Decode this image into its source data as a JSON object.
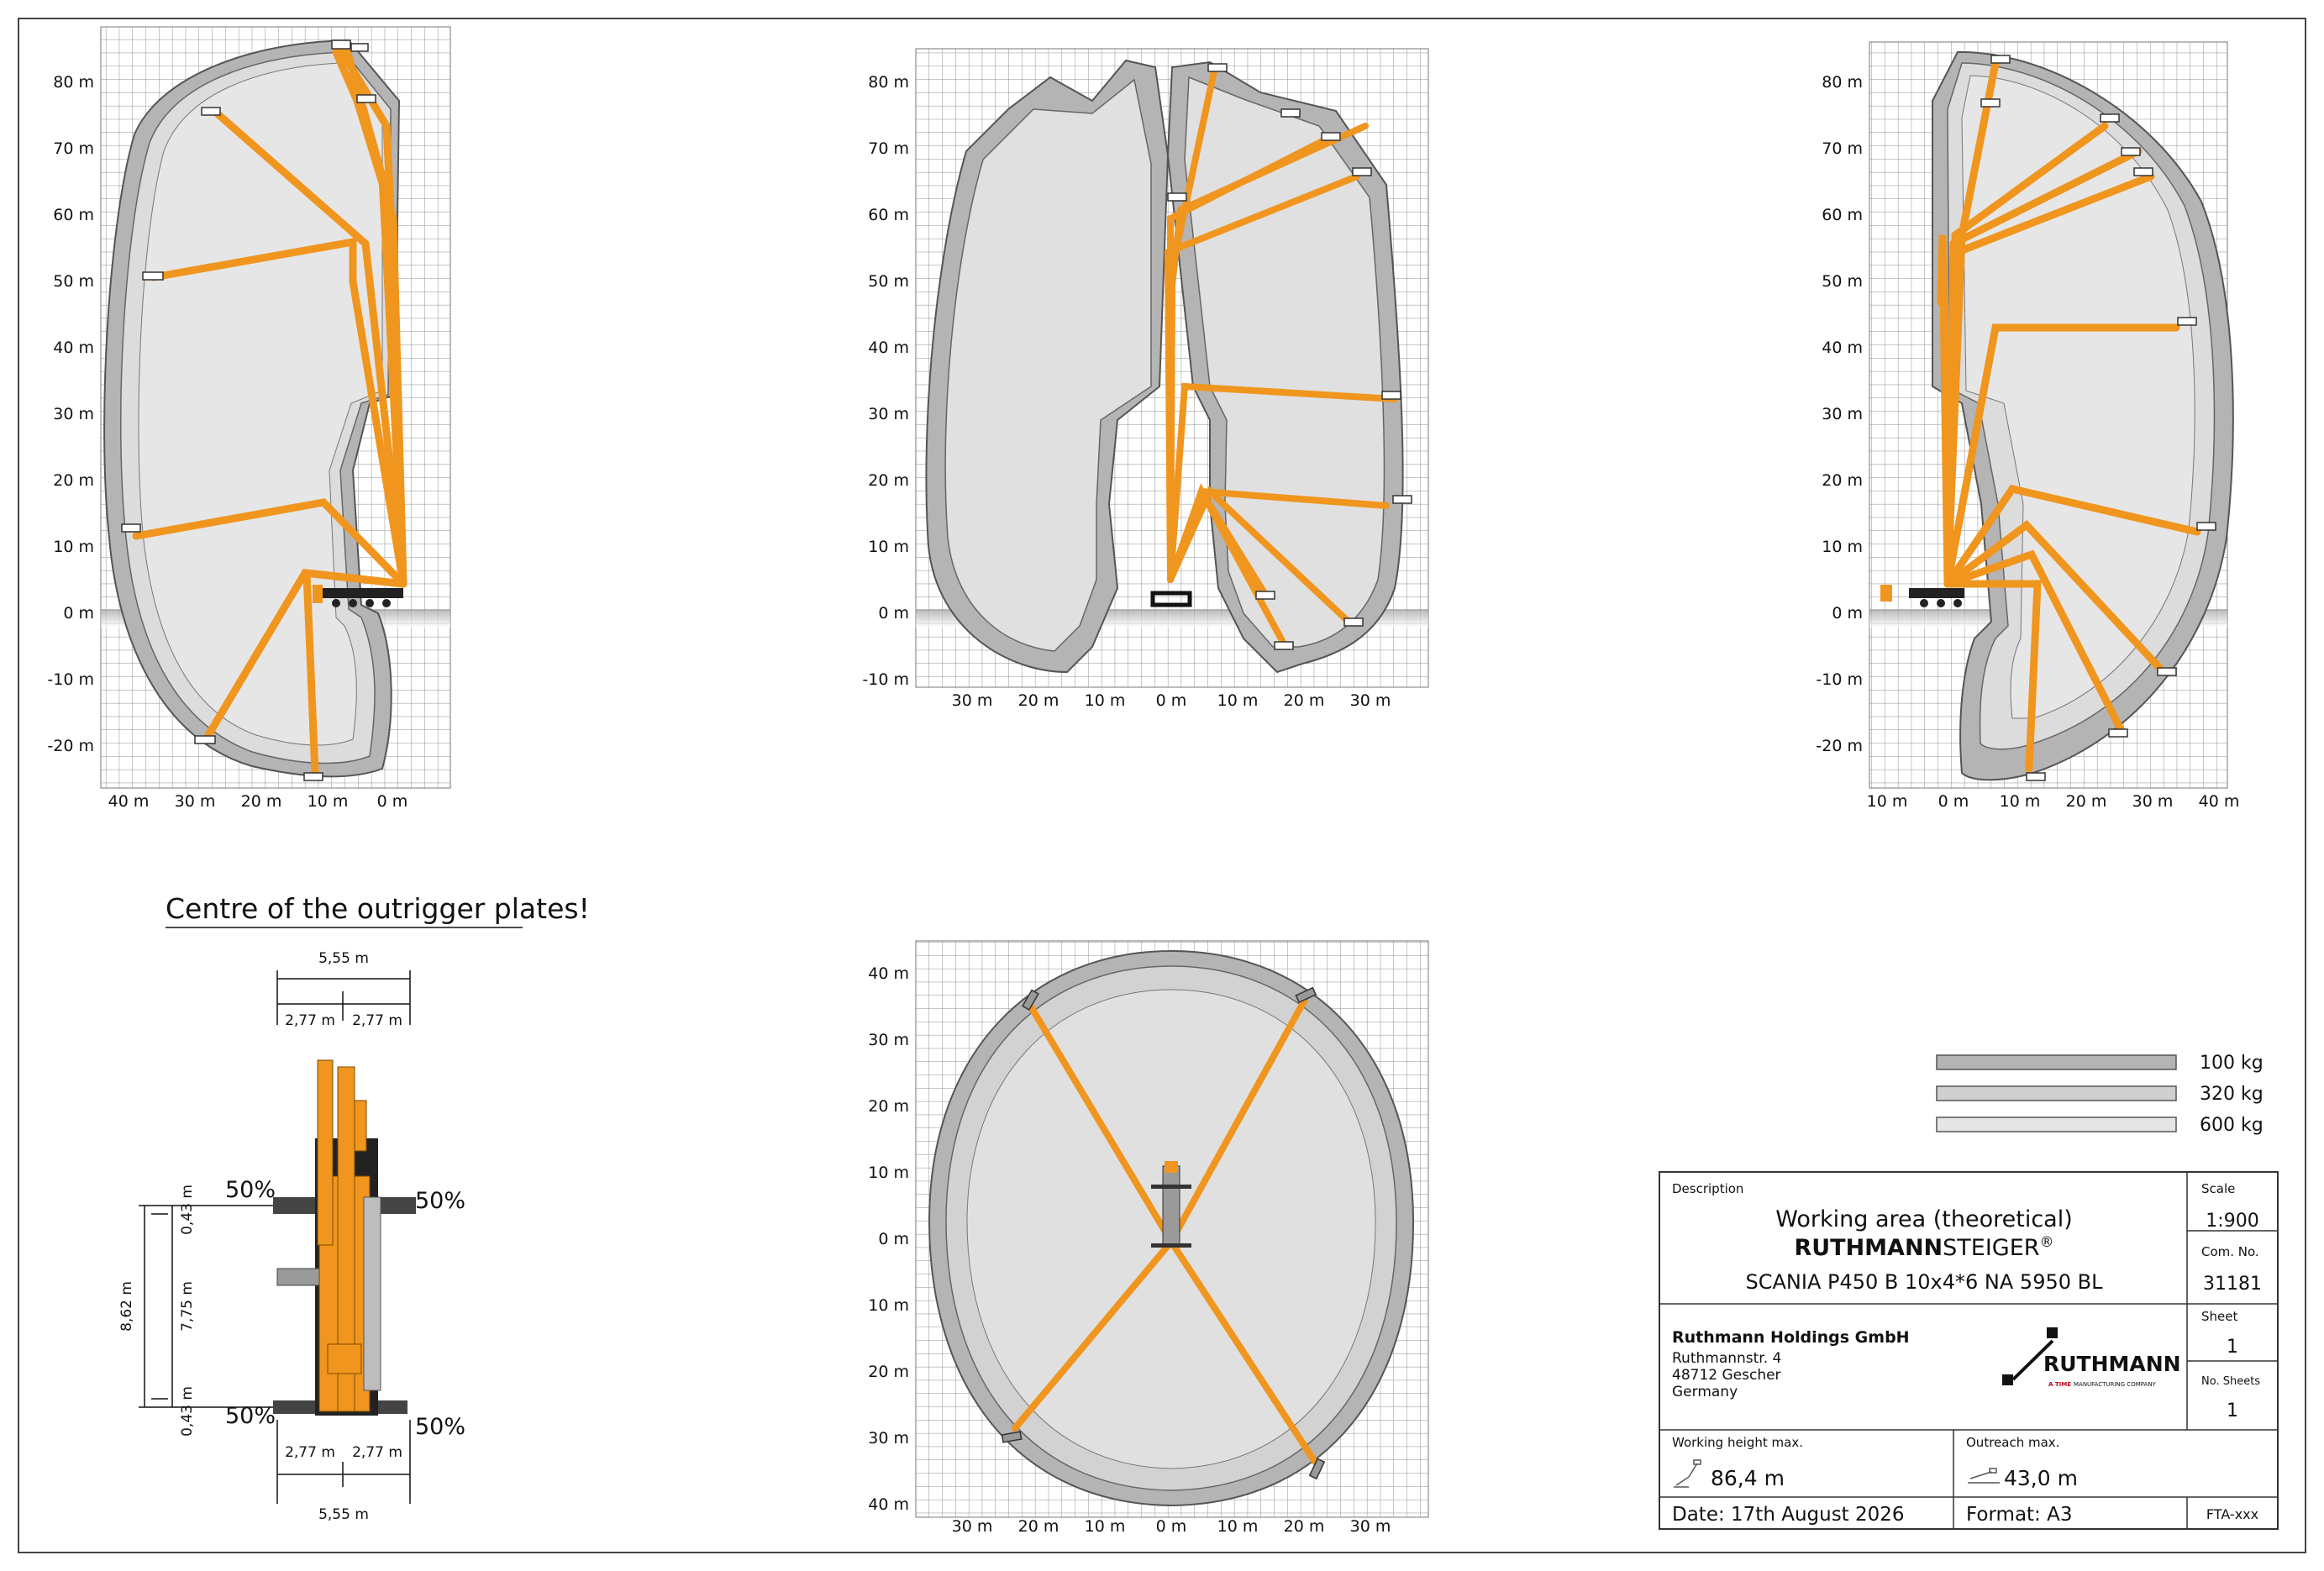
{
  "panels": {
    "side_left": {
      "x_ticks": [
        "40 m",
        "30 m",
        "20 m",
        "10 m",
        "0 m"
      ],
      "y_ticks": [
        "80 m",
        "70 m",
        "60 m",
        "50 m",
        "40 m",
        "30 m",
        "20 m",
        "10 m",
        "0 m",
        "-10 m",
        "-20 m"
      ]
    },
    "side_center": {
      "x_ticks": [
        "30 m",
        "20 m",
        "10 m",
        "0 m",
        "10 m",
        "20 m",
        "30 m"
      ],
      "y_ticks": [
        "80 m",
        "70 m",
        "60 m",
        "50 m",
        "40 m",
        "30 m",
        "20 m",
        "10 m",
        "0 m",
        "-10 m"
      ]
    },
    "side_right": {
      "x_ticks": [
        "10 m",
        "0 m",
        "10 m",
        "20 m",
        "30 m",
        "40 m"
      ],
      "y_ticks": [
        "80 m",
        "70 m",
        "60 m",
        "50 m",
        "40 m",
        "30 m",
        "20 m",
        "10 m",
        "0 m",
        "-10 m",
        "-20 m"
      ]
    },
    "top_view": {
      "x_ticks": [
        "30 m",
        "20 m",
        "10 m",
        "0 m",
        "10 m",
        "20 m",
        "30 m"
      ],
      "y_ticks": [
        "40 m",
        "30 m",
        "20 m",
        "10 m",
        "0 m",
        "10 m",
        "20 m",
        "30 m",
        "40 m"
      ]
    }
  },
  "outrigger": {
    "title": "Centre of the outrigger plates!",
    "width_total": "5,55 m",
    "width_half": "2,77 m",
    "length_total": "8,62 m",
    "length_inner": "7,75 m",
    "offset": "0,43 m",
    "load_pct": "50%"
  },
  "legend": [
    {
      "label": "100 kg",
      "color": "#b4b4b4"
    },
    {
      "label": "320 kg",
      "color": "#cfcfcf"
    },
    {
      "label": "600 kg",
      "color": "#e6e6e6"
    }
  ],
  "title_block": {
    "description_label": "Description",
    "title_line1": "Working area (theoretical)",
    "brand_bold": "RUTHMANN",
    "brand_light": "STEIGER",
    "reg_mark": "®",
    "model": "SCANIA P450 B 10x4*6 NA 5950 BL",
    "scale_label": "Scale",
    "scale_value": "1:900",
    "com_no_label": "Com. No.",
    "com_no_value": "31181",
    "sheet_label": "Sheet",
    "sheet_value": "1",
    "no_sheets_label": "No. Sheets",
    "no_sheets_value": "1",
    "company": "Ruthmann Holdings GmbH",
    "street": "Ruthmannstr. 4",
    "city": "48712 Gescher",
    "country": "Germany",
    "logo_text": "RUTHMANN",
    "logo_sub_brand": "A TIME",
    "logo_sub": "MANUFACTURING COMPANY",
    "work_height_label": "Working height max.",
    "work_height_value": "86,4 m",
    "outreach_label": "Outreach max.",
    "outreach_value": "43,0 m",
    "date": "Date:  17th August 2026",
    "format": "Format:  A3",
    "code": "FTA-xxx"
  },
  "colors": {
    "boom": "#f0951e",
    "envelope_dark": "#b4b4b4",
    "envelope_mid": "#cfcfcf",
    "envelope_light": "#e6e6e6",
    "grid": "#8a8a8a"
  }
}
